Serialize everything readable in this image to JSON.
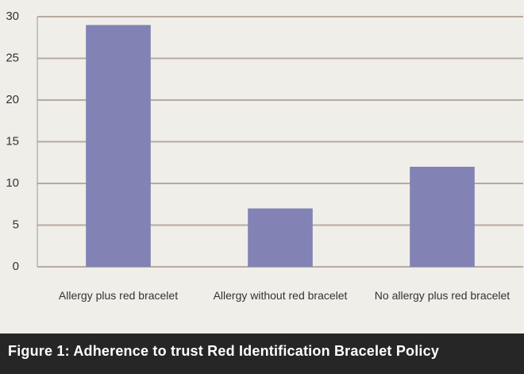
{
  "chart_data": {
    "type": "bar",
    "title": "Figure 1: Adherence to trust Red Identification Bracelet Policy",
    "categories": [
      "Allergy plus red bracelet",
      "Allergy without red bracelet",
      "No allergy plus red bracelet"
    ],
    "values": [
      29,
      7,
      12
    ],
    "color": "#8282b4",
    "ylim": [
      0,
      30
    ],
    "yticks": [
      0,
      5,
      10,
      15,
      20,
      25,
      30
    ],
    "grid": true
  }
}
